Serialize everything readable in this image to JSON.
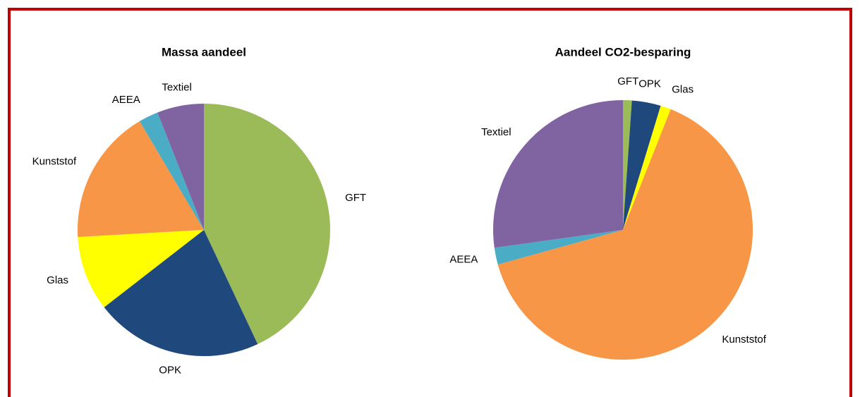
{
  "chart_data": [
    {
      "type": "pie",
      "title": "Massa aandeel",
      "categories": [
        "GFT",
        "OPK",
        "Glas",
        "Kunststof",
        "AEEA",
        "Textiel"
      ],
      "values": [
        43,
        21.5,
        9.6,
        17.4,
        2.5,
        6
      ],
      "colors": [
        "#9bbb59",
        "#1f497d",
        "#ffff00",
        "#f79646",
        "#4bacc6",
        "#8064a2"
      ]
    },
    {
      "type": "pie",
      "title": "Aandeel CO2-besparing",
      "categories": [
        "GFT",
        "OPK",
        "Glas",
        "Kunststof",
        "AEEA",
        "Textiel"
      ],
      "values": [
        1.1,
        3.6,
        1.3,
        64.7,
        2.1,
        27.2
      ],
      "colors": [
        "#9bbb59",
        "#1f497d",
        "#ffff00",
        "#f79646",
        "#4bacc6",
        "#8064a2"
      ]
    }
  ]
}
